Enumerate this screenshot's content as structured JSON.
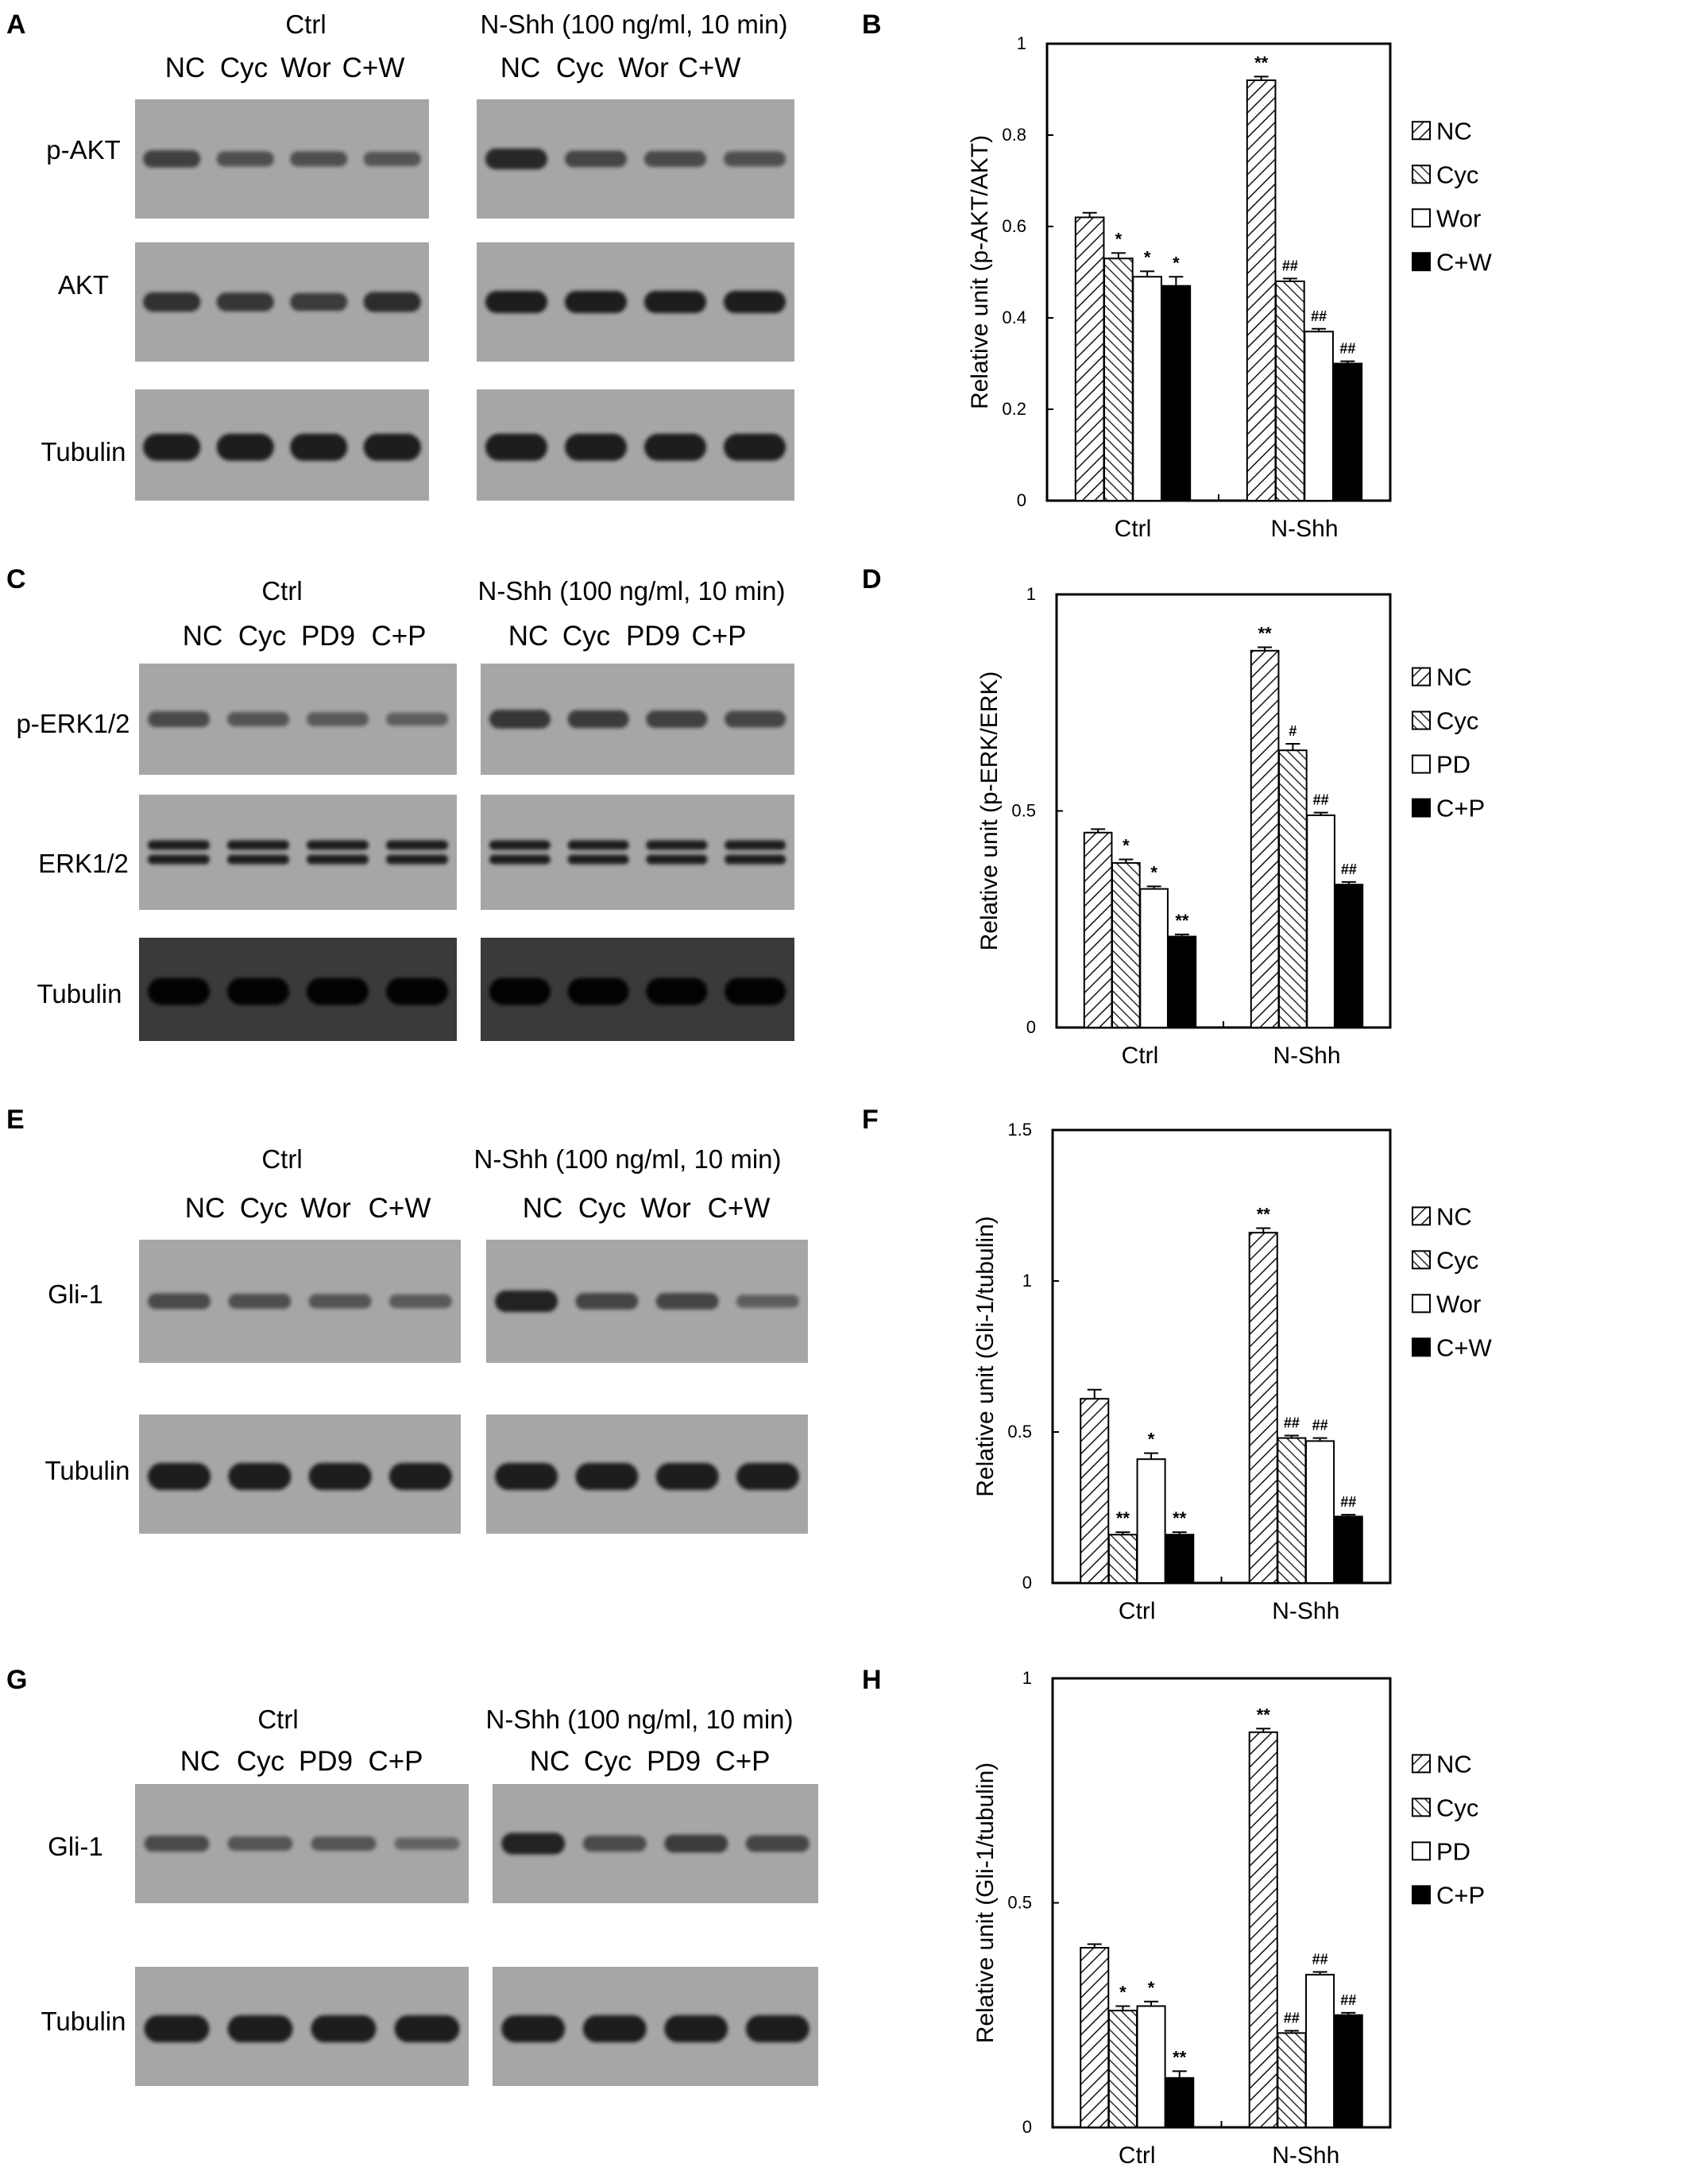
{
  "colors": {
    "band": "#151515",
    "blot_bg_light": "#a6a6a6",
    "blot_bg_dark": "#3a3a3a",
    "bar_open": "#ffffff",
    "bar_solid": "#000000"
  },
  "blots": [
    {
      "panel_label": "A",
      "conditions": [
        {
          "title": "Ctrl",
          "lanes": [
            "NC",
            "Cyc",
            "Wor",
            "C+W"
          ]
        },
        {
          "title": "N-Shh (100 ng/ml, 10 min)",
          "lanes": [
            "NC",
            "Cyc",
            "Wor",
            "C+W"
          ]
        }
      ],
      "rows": [
        {
          "label": "p-AKT",
          "intensity": [
            [
              0.65,
              0.5,
              0.5,
              0.45
            ],
            [
              0.9,
              0.6,
              0.55,
              0.5
            ]
          ]
        },
        {
          "label": "AKT",
          "intensity": [
            [
              0.8,
              0.75,
              0.7,
              0.85
            ],
            [
              1,
              1,
              1,
              1
            ]
          ]
        },
        {
          "label": "Tubulin",
          "intensity": [
            [
              1,
              1,
              1,
              1
            ],
            [
              1,
              1,
              1,
              1
            ]
          ]
        }
      ]
    },
    {
      "panel_label": "C",
      "conditions": [
        {
          "title": "Ctrl",
          "lanes": [
            "NC",
            "Cyc",
            "PD9",
            "C+P"
          ]
        },
        {
          "title": "N-Shh (100 ng/ml, 10 min)",
          "lanes": [
            "NC",
            "Cyc",
            "PD9",
            "C+P"
          ]
        }
      ],
      "rows": [
        {
          "label": "p-ERK1/2",
          "intensity": [
            [
              0.55,
              0.45,
              0.4,
              0.35
            ],
            [
              0.75,
              0.7,
              0.65,
              0.6
            ]
          ]
        },
        {
          "label": "ERK1/2",
          "intensity": [
            [
              1,
              1,
              1,
              1
            ],
            [
              1,
              1,
              1,
              1
            ]
          ]
        },
        {
          "label": "Tubulin",
          "intensity": [
            [
              1,
              1,
              1,
              1
            ],
            [
              1,
              1,
              1,
              1
            ]
          ]
        }
      ]
    },
    {
      "panel_label": "E",
      "conditions": [
        {
          "title": "Ctrl",
          "lanes": [
            "NC",
            "Cyc",
            "Wor",
            "C+W"
          ]
        },
        {
          "title": "N-Shh (100 ng/ml, 10 min)",
          "lanes": [
            "NC",
            "Cyc",
            "Wor",
            "C+W"
          ]
        }
      ],
      "rows": [
        {
          "label": "Gli-1",
          "intensity": [
            [
              0.55,
              0.5,
              0.45,
              0.4
            ],
            [
              0.95,
              0.6,
              0.6,
              0.35
            ]
          ]
        },
        {
          "label": "Tubulin",
          "intensity": [
            [
              1,
              1,
              1,
              1
            ],
            [
              1,
              1,
              1,
              1
            ]
          ]
        }
      ]
    },
    {
      "panel_label": "G",
      "conditions": [
        {
          "title": "Ctrl",
          "lanes": [
            "NC",
            "Cyc",
            "PD9",
            "C+P"
          ]
        },
        {
          "title": "N-Shh (100 ng/ml, 10 min)",
          "lanes": [
            "NC",
            "Cyc",
            "PD9",
            "C+P"
          ]
        }
      ],
      "rows": [
        {
          "label": "Gli-1",
          "intensity": [
            [
              0.55,
              0.45,
              0.45,
              0.3
            ],
            [
              0.95,
              0.55,
              0.7,
              0.6
            ]
          ]
        },
        {
          "label": "Tubulin",
          "intensity": [
            [
              1,
              1,
              1,
              1
            ],
            [
              1,
              1,
              1,
              1
            ]
          ]
        }
      ]
    }
  ],
  "chart_data": [
    {
      "panel_label": "B",
      "type": "bar",
      "ylabel": "Relative unit (p-AKT/AKT)",
      "ylim": [
        0,
        1
      ],
      "yticks": [
        0,
        0.2,
        0.4,
        0.6,
        0.8,
        1
      ],
      "ytick_labels": [
        "0",
        "0.2",
        "0.4",
        "0.6",
        "0.8",
        "1"
      ],
      "categories": [
        "Ctrl",
        "N-Shh"
      ],
      "grid": false,
      "legend": "right",
      "series": [
        {
          "name": "NC",
          "fill": "hatch-fwd",
          "values": [
            0.62,
            0.92
          ],
          "errors": [
            0.01,
            0.008
          ],
          "annotations": [
            "",
            "**"
          ]
        },
        {
          "name": "Cyc",
          "fill": "hatch-back",
          "values": [
            0.53,
            0.48
          ],
          "errors": [
            0.012,
            0.006
          ],
          "annotations": [
            "*",
            "##"
          ]
        },
        {
          "name": "Wor",
          "fill": "open",
          "values": [
            0.49,
            0.37
          ],
          "errors": [
            0.012,
            0.006
          ],
          "annotations": [
            "*",
            "##"
          ]
        },
        {
          "name": "C+W",
          "fill": "solid",
          "values": [
            0.47,
            0.3
          ],
          "errors": [
            0.02,
            0.005
          ],
          "annotations": [
            "*",
            "##"
          ]
        }
      ]
    },
    {
      "panel_label": "D",
      "type": "bar",
      "ylabel": "Relative unit (p-ERK/ERK)",
      "ylim": [
        0,
        1
      ],
      "yticks": [
        0,
        0.5,
        1
      ],
      "ytick_labels": [
        "0",
        "0.5",
        "1"
      ],
      "categories": [
        "Ctrl",
        "N-Shh"
      ],
      "grid": false,
      "legend": "right",
      "series": [
        {
          "name": "NC",
          "fill": "hatch-fwd",
          "values": [
            0.45,
            0.87
          ],
          "errors": [
            0.008,
            0.008
          ],
          "annotations": [
            "",
            "**"
          ]
        },
        {
          "name": "Cyc",
          "fill": "hatch-back",
          "values": [
            0.38,
            0.64
          ],
          "errors": [
            0.008,
            0.015
          ],
          "annotations": [
            "*",
            "#"
          ]
        },
        {
          "name": "PD",
          "fill": "open",
          "values": [
            0.32,
            0.49
          ],
          "errors": [
            0.006,
            0.006
          ],
          "annotations": [
            "*",
            "##"
          ]
        },
        {
          "name": "C+P",
          "fill": "solid",
          "values": [
            0.21,
            0.33
          ],
          "errors": [
            0.005,
            0.006
          ],
          "annotations": [
            "**",
            "##"
          ]
        }
      ]
    },
    {
      "panel_label": "F",
      "type": "bar",
      "ylabel": "Relative unit (Gli-1/tubulin)",
      "ylim": [
        0,
        1.5
      ],
      "yticks": [
        0,
        0.5,
        1,
        1.5
      ],
      "ytick_labels": [
        "0",
        "0.5",
        "1",
        "1.5"
      ],
      "categories": [
        "Ctrl",
        "N-Shh"
      ],
      "grid": false,
      "legend": "right",
      "series": [
        {
          "name": "NC",
          "fill": "hatch-fwd",
          "values": [
            0.61,
            1.16
          ],
          "errors": [
            0.03,
            0.015
          ],
          "annotations": [
            "",
            "**"
          ]
        },
        {
          "name": "Cyc",
          "fill": "hatch-back",
          "values": [
            0.16,
            0.48
          ],
          "errors": [
            0.008,
            0.008
          ],
          "annotations": [
            "**",
            "##"
          ]
        },
        {
          "name": "Wor",
          "fill": "open",
          "values": [
            0.41,
            0.47
          ],
          "errors": [
            0.02,
            0.01
          ],
          "annotations": [
            "*",
            "##"
          ]
        },
        {
          "name": "C+W",
          "fill": "solid",
          "values": [
            0.16,
            0.22
          ],
          "errors": [
            0.008,
            0.006
          ],
          "annotations": [
            "**",
            "##"
          ]
        }
      ]
    },
    {
      "panel_label": "H",
      "type": "bar",
      "ylabel": "Relative unit (Gli-1/tubulin)",
      "ylim": [
        0,
        1
      ],
      "yticks": [
        0,
        0.5,
        1
      ],
      "ytick_labels": [
        "0",
        "0.5",
        "1"
      ],
      "categories": [
        "Ctrl",
        "N-Shh"
      ],
      "grid": false,
      "legend": "right",
      "series": [
        {
          "name": "NC",
          "fill": "hatch-fwd",
          "values": [
            0.4,
            0.88
          ],
          "errors": [
            0.008,
            0.008
          ],
          "annotations": [
            "",
            "**"
          ]
        },
        {
          "name": "Cyc",
          "fill": "hatch-back",
          "values": [
            0.26,
            0.21
          ],
          "errors": [
            0.01,
            0.005
          ],
          "annotations": [
            "*",
            "##"
          ]
        },
        {
          "name": "PD",
          "fill": "open",
          "values": [
            0.27,
            0.34
          ],
          "errors": [
            0.01,
            0.006
          ],
          "annotations": [
            "*",
            "##"
          ]
        },
        {
          "name": "C+P",
          "fill": "solid",
          "values": [
            0.11,
            0.25
          ],
          "errors": [
            0.015,
            0.005
          ],
          "annotations": [
            "**",
            "##"
          ]
        }
      ]
    }
  ]
}
